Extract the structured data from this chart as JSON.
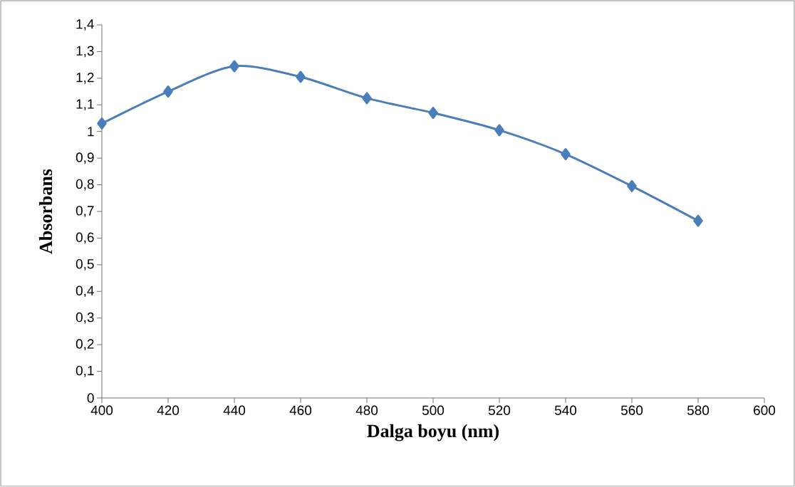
{
  "chart_data": {
    "type": "line",
    "xlabel": "Dalga boyu (nm)",
    "ylabel": "Absorbans",
    "x": [
      400,
      420,
      440,
      460,
      480,
      500,
      520,
      540,
      560,
      580
    ],
    "series": [
      {
        "color": "#4a7ebb",
        "values": [
          1.03,
          1.15,
          1.245,
          1.205,
          1.125,
          1.07,
          1.005,
          0.915,
          0.795,
          0.665
        ]
      }
    ],
    "xlim": [
      400,
      600
    ],
    "ylim": [
      0,
      1.4
    ],
    "xticks": [
      400,
      420,
      440,
      460,
      480,
      500,
      520,
      540,
      560,
      580,
      600
    ],
    "yticks": [
      0,
      {
        "value": 0.1,
        "label": "0,1"
      },
      {
        "value": 0.2,
        "label": "0,2"
      },
      {
        "value": 0.3,
        "label": "0,3"
      },
      {
        "value": 0.4,
        "label": "0,4"
      },
      {
        "value": 0.5,
        "label": "0,5"
      },
      {
        "value": 0.6,
        "label": "0,6"
      },
      {
        "value": 0.7,
        "label": "0,7"
      },
      {
        "value": 0.8,
        "label": "0,8"
      },
      {
        "value": 0.9,
        "label": "0,9"
      },
      1,
      {
        "value": 1.1,
        "label": "1,1"
      },
      {
        "value": 1.2,
        "label": "1,2"
      },
      {
        "value": 1.3,
        "label": "1,3"
      },
      {
        "value": 1.4,
        "label": "1,4"
      }
    ],
    "grid": false,
    "marker": "diamond",
    "line_style": "solid"
  }
}
